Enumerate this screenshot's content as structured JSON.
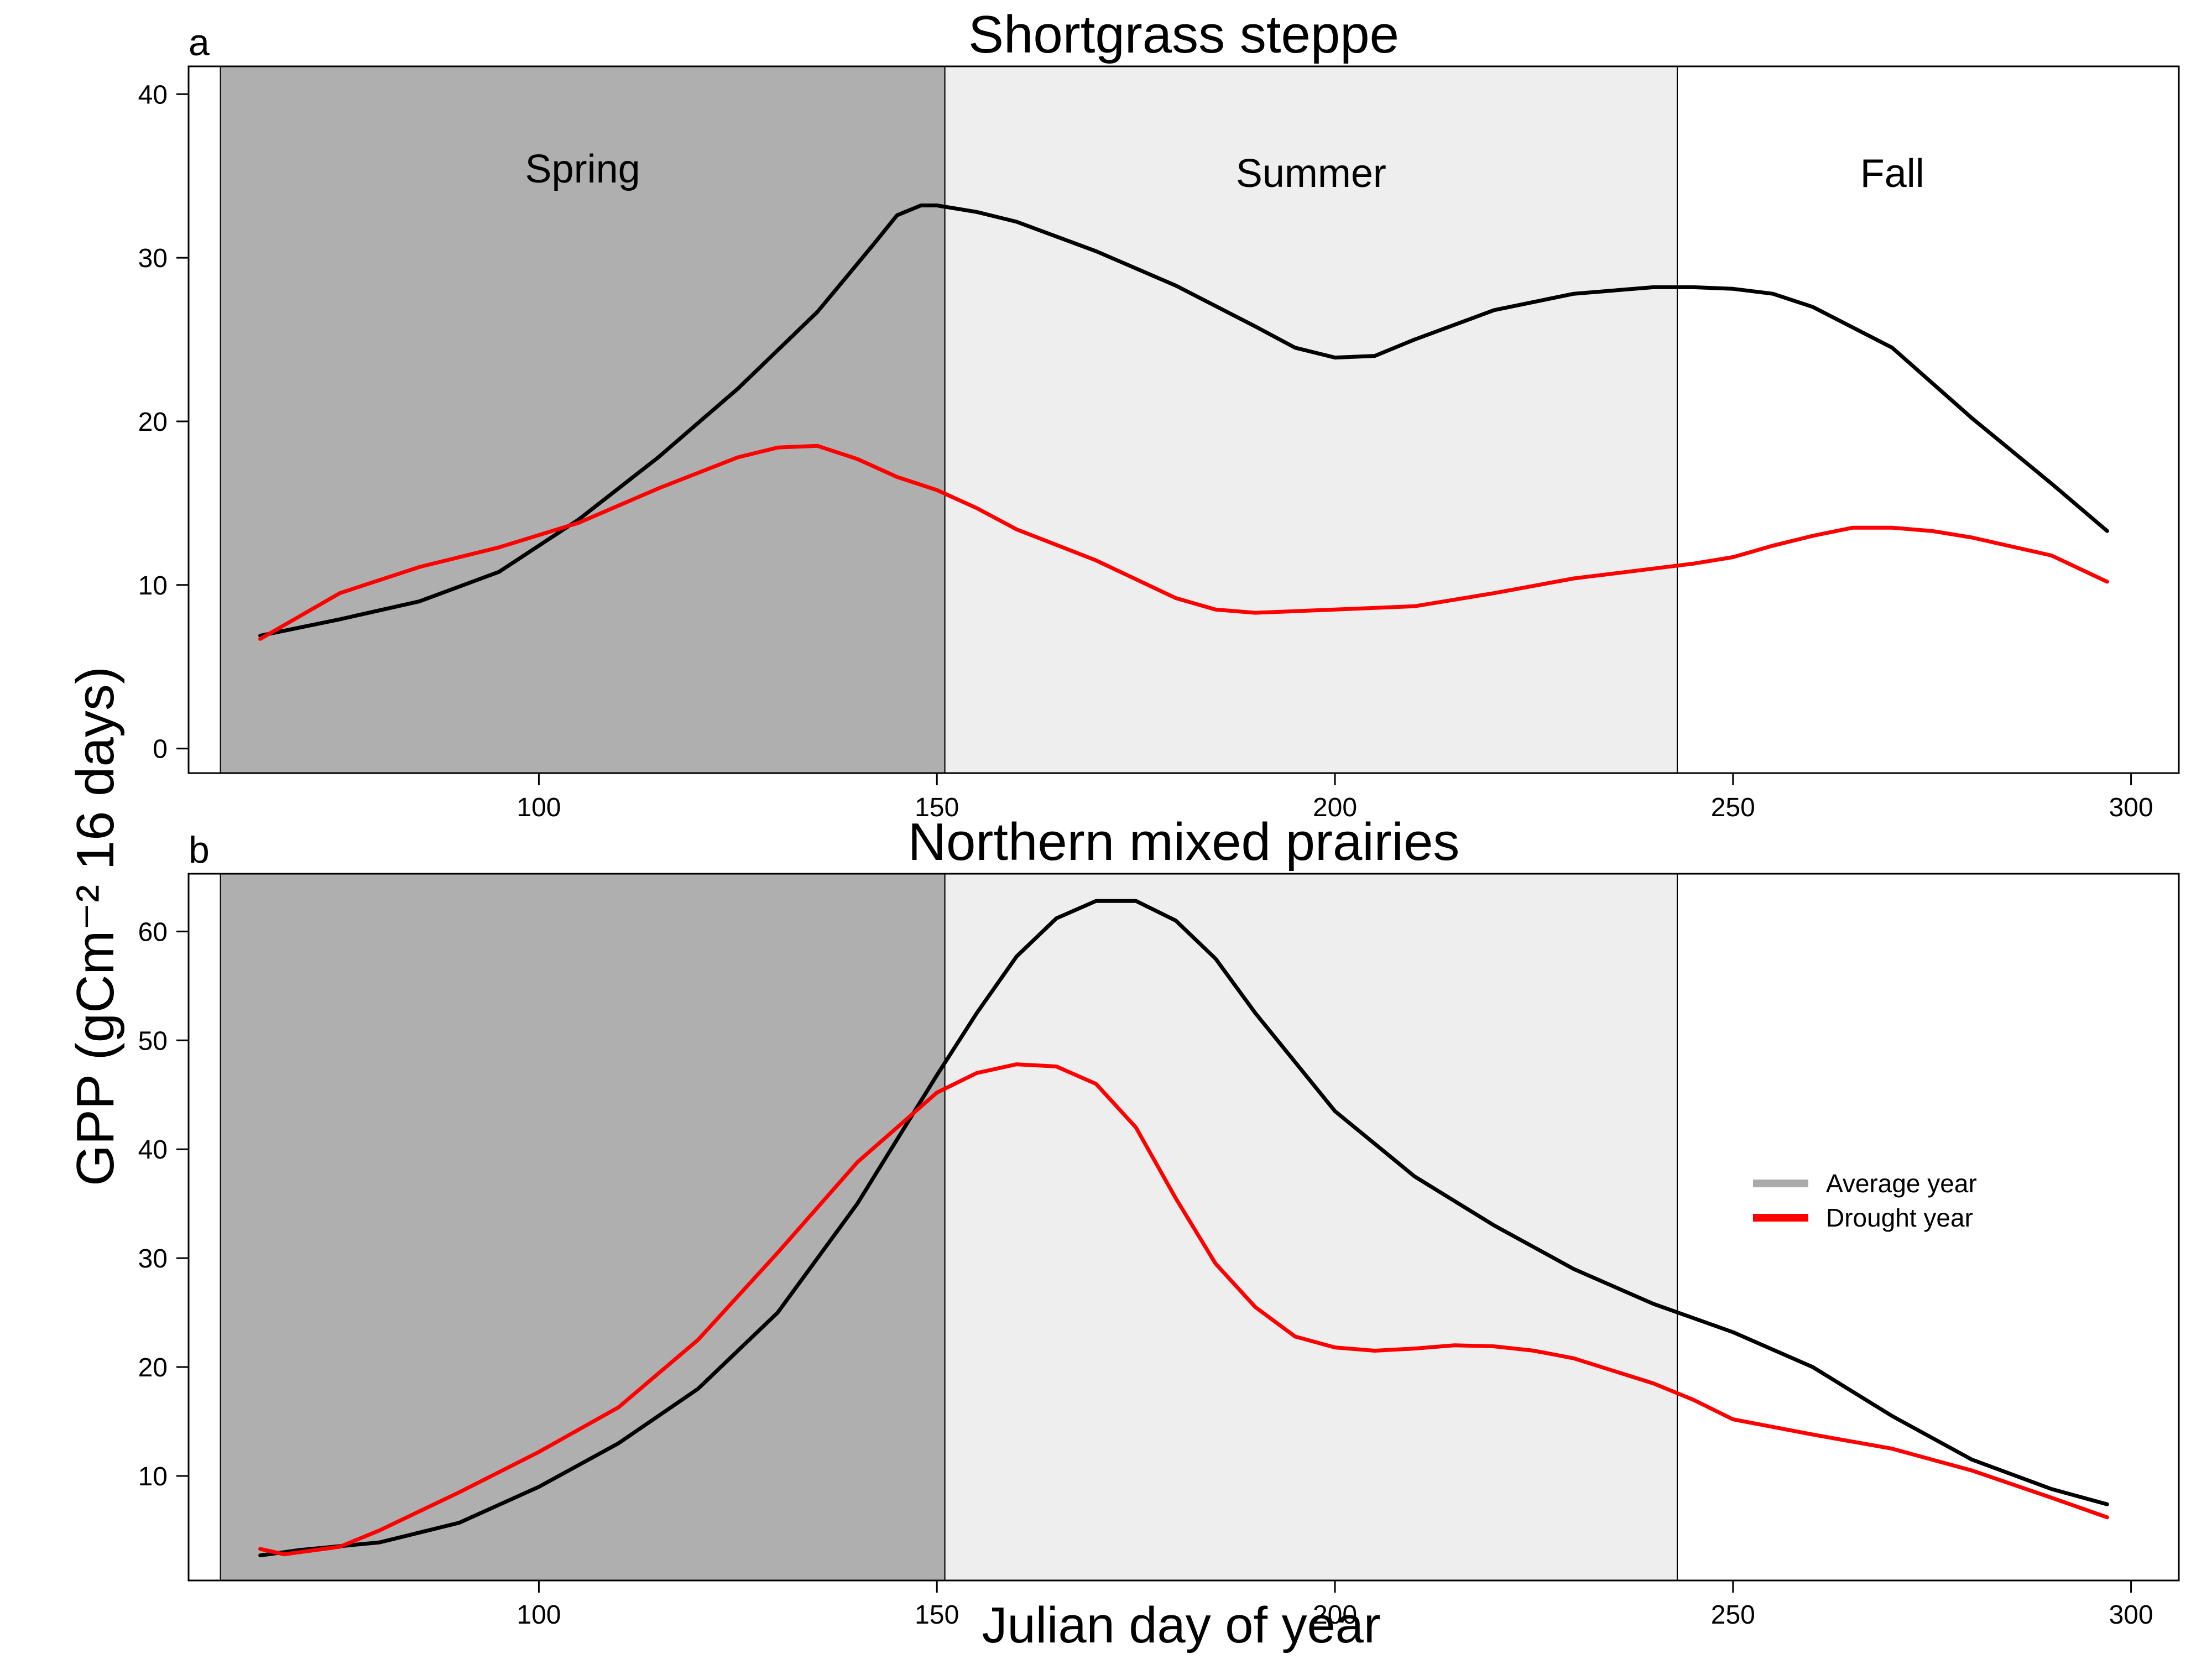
{
  "figure": {
    "ylabel": "GPP (gCm⁻² 16 days)",
    "xlabel": "Julian day of year",
    "legend": {
      "placement": "right",
      "items": [
        {
          "label": "Average year",
          "color": "#aaaaaa"
        },
        {
          "label": "Drought year",
          "color": "#ff0000"
        }
      ]
    },
    "colors": {
      "spring": "#afafaf",
      "summer": "#eeeeee",
      "fall": "#ffffff",
      "average": "#000000",
      "drought": "#ff0000"
    }
  },
  "chart_data": [
    {
      "type": "line",
      "panel": "a",
      "title": "Shortgrass steppe",
      "xlim": [
        56,
        306
      ],
      "ylim": [
        -1.5,
        41.7
      ],
      "xticks": [
        100,
        150,
        200,
        250,
        300
      ],
      "yticks": [
        0,
        10,
        20,
        30,
        40
      ],
      "grid": false,
      "seasons": [
        {
          "name": "Spring",
          "start": 60,
          "end": 151
        },
        {
          "name": "Summer",
          "start": 151,
          "end": 243
        },
        {
          "name": "Fall",
          "start": 243,
          "end": 306
        }
      ],
      "series": [
        {
          "name": "Average year",
          "x": [
            65,
            75,
            85,
            95,
            105,
            115,
            125,
            135,
            142,
            145,
            148,
            150,
            155,
            160,
            170,
            180,
            190,
            195,
            200,
            205,
            210,
            220,
            230,
            240,
            245,
            250,
            255,
            260,
            270,
            280,
            290,
            297
          ],
          "y": [
            6.9,
            7.9,
            9.0,
            10.8,
            14.0,
            17.8,
            22.0,
            26.7,
            30.8,
            32.6,
            33.2,
            33.2,
            32.8,
            32.2,
            30.4,
            28.3,
            25.8,
            24.5,
            23.9,
            24.0,
            25.0,
            26.8,
            27.8,
            28.2,
            28.2,
            28.1,
            27.8,
            27.0,
            24.5,
            20.2,
            16.2,
            13.3
          ]
        },
        {
          "name": "Drought year",
          "x": [
            65,
            75,
            85,
            95,
            105,
            115,
            125,
            130,
            135,
            140,
            145,
            150,
            155,
            160,
            170,
            180,
            185,
            190,
            200,
            210,
            220,
            230,
            240,
            245,
            250,
            255,
            260,
            265,
            270,
            275,
            280,
            290,
            297
          ],
          "y": [
            6.7,
            9.5,
            11.1,
            12.3,
            13.8,
            15.9,
            17.8,
            18.4,
            18.5,
            17.7,
            16.6,
            15.8,
            14.7,
            13.4,
            11.5,
            9.2,
            8.5,
            8.3,
            8.5,
            8.7,
            9.5,
            10.4,
            11.0,
            11.3,
            11.7,
            12.4,
            13.0,
            13.5,
            13.5,
            13.3,
            12.9,
            11.8,
            10.2
          ]
        }
      ],
      "annotations": [
        "Spring",
        "Summer",
        "Fall"
      ]
    },
    {
      "type": "line",
      "panel": "b",
      "title": "Northern mixed prairies",
      "xlim": [
        56,
        306
      ],
      "ylim": [
        0.4,
        65.3
      ],
      "xticks": [
        100,
        150,
        200,
        250,
        300
      ],
      "yticks": [
        10,
        20,
        30,
        40,
        50,
        60
      ],
      "grid": false,
      "seasons": [
        {
          "name": "Spring",
          "start": 60,
          "end": 151
        },
        {
          "name": "Summer",
          "start": 151,
          "end": 243
        },
        {
          "name": "Fall",
          "start": 243,
          "end": 306
        }
      ],
      "series": [
        {
          "name": "Average year",
          "x": [
            65,
            70,
            80,
            90,
            100,
            110,
            120,
            130,
            140,
            150,
            155,
            160,
            165,
            170,
            175,
            180,
            185,
            190,
            200,
            210,
            220,
            230,
            240,
            250,
            260,
            270,
            280,
            290,
            297
          ],
          "y": [
            2.7,
            3.2,
            3.9,
            5.7,
            9.0,
            13.0,
            18.0,
            25.0,
            35.0,
            46.8,
            52.5,
            57.7,
            61.2,
            62.8,
            62.8,
            61.0,
            57.5,
            52.5,
            43.5,
            37.5,
            33.0,
            29.0,
            25.8,
            23.2,
            20.0,
            15.5,
            11.5,
            8.8,
            7.4
          ]
        },
        {
          "name": "Drought year",
          "x": [
            65,
            68,
            70,
            75,
            80,
            90,
            100,
            110,
            120,
            130,
            140,
            150,
            155,
            160,
            165,
            170,
            175,
            180,
            185,
            190,
            195,
            200,
            205,
            210,
            215,
            220,
            225,
            230,
            240,
            245,
            250,
            255,
            260,
            270,
            280,
            290,
            297
          ],
          "y": [
            3.3,
            2.8,
            3.0,
            3.5,
            5.0,
            8.5,
            12.2,
            16.3,
            22.5,
            30.5,
            38.8,
            45.2,
            47.0,
            47.8,
            47.6,
            46.0,
            42.0,
            35.5,
            29.5,
            25.5,
            22.8,
            21.8,
            21.5,
            21.7,
            22.0,
            21.9,
            21.5,
            20.8,
            18.5,
            17.0,
            15.2,
            14.5,
            13.8,
            12.5,
            10.5,
            8.0,
            6.2
          ]
        }
      ]
    }
  ]
}
